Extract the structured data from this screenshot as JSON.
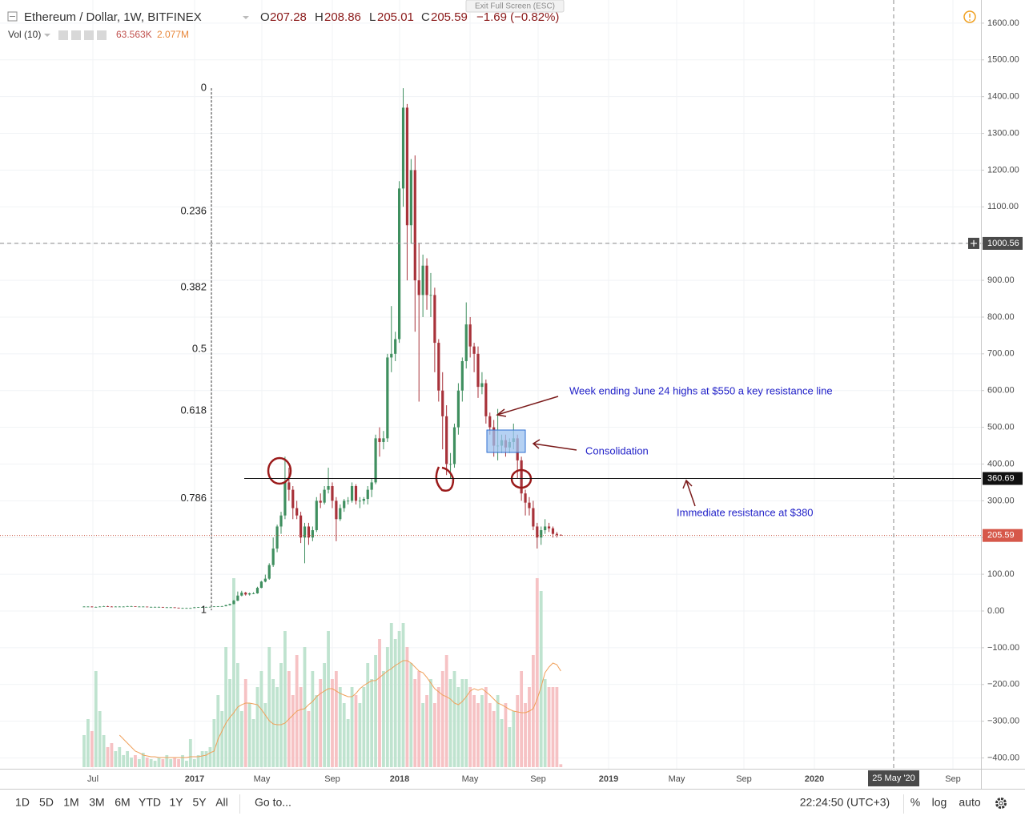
{
  "header": {
    "symbol": "Ethereum / Dollar, 1W, BITFINEX",
    "ohlc_letters": [
      "O",
      "H",
      "L",
      "C"
    ],
    "change": "−1.69 (−0.82%)",
    "exit_fullscreen": "Exit Full Screen (ESC)"
  },
  "chart_data": {
    "type": "candlestick",
    "up_color": "#3f8f5f",
    "down_color": "#a8323a",
    "ylim": [
      -425,
      1663
    ],
    "yticks": [
      {
        "value": -400,
        "label": "−400.00"
      },
      {
        "value": -300,
        "label": "−300.00"
      },
      {
        "value": -200,
        "label": "−200.00"
      },
      {
        "value": -100,
        "label": "−100.00"
      },
      {
        "value": 0,
        "label": "0.00"
      },
      {
        "value": 100,
        "label": "100.00"
      },
      {
        "value": 200,
        "label": "200.00"
      },
      {
        "value": 300,
        "label": "300.00"
      },
      {
        "value": 400,
        "label": "400.00"
      },
      {
        "value": 500,
        "label": "500.00"
      },
      {
        "value": 600,
        "label": "600.00"
      },
      {
        "value": 700,
        "label": "700.00"
      },
      {
        "value": 800,
        "label": "800.00"
      },
      {
        "value": 900,
        "label": "900.00"
      },
      {
        "value": 1000,
        "label": "1000.00"
      },
      {
        "value": 1100,
        "label": "1100.00"
      },
      {
        "value": 1200,
        "label": "1200.00"
      },
      {
        "value": 1300,
        "label": "1300.00"
      },
      {
        "value": 1400,
        "label": "1400.00"
      },
      {
        "value": 1500,
        "label": "1500.00"
      },
      {
        "value": 1600,
        "label": "1600.00"
      }
    ],
    "grid": true,
    "xtick_labels": [
      "Jul",
      "2017",
      "May",
      "Sep",
      "2018",
      "May",
      "Sep",
      "2019",
      "May",
      "Sep",
      "2020",
      "Sep"
    ],
    "ohlc": [
      [
        12,
        13,
        11,
        12
      ],
      [
        12,
        13,
        11,
        12
      ],
      [
        12,
        13,
        10,
        11
      ],
      [
        11,
        12,
        10,
        11
      ],
      [
        11,
        13,
        11,
        12
      ],
      [
        12,
        14,
        12,
        13
      ],
      [
        13,
        14,
        11,
        12
      ],
      [
        12,
        13,
        11,
        11
      ],
      [
        11,
        13,
        11,
        12
      ],
      [
        12,
        13,
        11,
        12
      ],
      [
        12,
        13,
        11,
        12
      ],
      [
        12,
        14,
        12,
        13
      ],
      [
        13,
        14,
        12,
        13
      ],
      [
        13,
        13,
        12,
        12
      ],
      [
        12,
        13,
        11,
        12
      ],
      [
        12,
        13,
        11,
        12
      ],
      [
        12,
        12,
        10,
        11
      ],
      [
        11,
        12,
        10,
        11
      ],
      [
        11,
        12,
        10,
        11
      ],
      [
        11,
        12,
        10,
        11
      ],
      [
        11,
        11,
        9,
        10
      ],
      [
        10,
        11,
        9,
        10
      ],
      [
        10,
        11,
        9,
        10
      ],
      [
        10,
        10,
        8,
        9
      ],
      [
        9,
        9,
        7,
        8
      ],
      [
        8,
        9,
        7,
        8
      ],
      [
        8,
        9,
        7,
        8
      ],
      [
        8,
        9,
        7,
        8
      ],
      [
        8,
        11,
        8,
        10
      ],
      [
        10,
        11,
        9,
        10.5
      ],
      [
        10.5,
        11,
        10,
        10.7
      ],
      [
        10.7,
        11.5,
        10.4,
        11
      ],
      [
        11,
        11.8,
        10.8,
        11.3
      ],
      [
        11.3,
        13,
        11,
        12.5
      ],
      [
        12.5,
        13.2,
        12,
        12.7
      ],
      [
        12.7,
        14,
        12.5,
        13
      ],
      [
        13,
        17,
        12.8,
        16
      ],
      [
        16,
        20,
        15,
        19
      ],
      [
        19,
        30,
        18,
        28
      ],
      [
        28,
        53,
        27,
        42
      ],
      [
        42,
        55,
        40,
        50
      ],
      [
        50,
        52,
        42,
        45
      ],
      [
        45,
        50,
        42,
        48
      ],
      [
        48,
        51,
        46,
        48
      ],
      [
        48,
        66,
        47,
        63
      ],
      [
        63,
        82,
        62,
        80
      ],
      [
        80,
        99,
        78,
        88
      ],
      [
        88,
        130,
        85,
        125
      ],
      [
        125,
        200,
        120,
        170
      ],
      [
        170,
        235,
        160,
        230
      ],
      [
        230,
        270,
        210,
        260
      ],
      [
        260,
        420,
        250,
        350
      ],
      [
        350,
        390,
        300,
        330
      ],
      [
        330,
        340,
        250,
        280
      ],
      [
        280,
        300,
        250,
        260
      ],
      [
        260,
        270,
        185,
        200
      ],
      [
        200,
        240,
        130,
        230
      ],
      [
        230,
        240,
        180,
        200
      ],
      [
        200,
        230,
        190,
        220
      ],
      [
        220,
        310,
        215,
        300
      ],
      [
        300,
        320,
        280,
        295
      ],
      [
        295,
        340,
        290,
        330
      ],
      [
        330,
        390,
        320,
        340
      ],
      [
        340,
        350,
        280,
        300
      ],
      [
        300,
        310,
        190,
        250
      ],
      [
        250,
        290,
        245,
        280
      ],
      [
        280,
        305,
        270,
        300
      ],
      [
        300,
        310,
        290,
        300
      ],
      [
        300,
        350,
        295,
        340
      ],
      [
        340,
        345,
        290,
        300
      ],
      [
        300,
        310,
        280,
        300
      ],
      [
        300,
        310,
        290,
        305
      ],
      [
        305,
        340,
        290,
        330
      ],
      [
        330,
        360,
        310,
        350
      ],
      [
        350,
        480,
        345,
        470
      ],
      [
        470,
        500,
        420,
        460
      ],
      [
        460,
        490,
        440,
        470
      ],
      [
        470,
        700,
        460,
        690
      ],
      [
        690,
        830,
        650,
        700
      ],
      [
        700,
        760,
        680,
        740
      ],
      [
        740,
        1170,
        730,
        1150
      ],
      [
        1150,
        1423,
        1100,
        1370
      ],
      [
        1370,
        1380,
        900,
        1050
      ],
      [
        1050,
        1230,
        1000,
        1200
      ],
      [
        1200,
        1240,
        760,
        900
      ],
      [
        900,
        1000,
        570,
        860
      ],
      [
        860,
        970,
        800,
        940
      ],
      [
        940,
        960,
        820,
        860
      ],
      [
        860,
        920,
        800,
        860
      ],
      [
        860,
        880,
        650,
        730
      ],
      [
        730,
        740,
        570,
        600
      ],
      [
        600,
        650,
        440,
        530
      ],
      [
        530,
        560,
        370,
        400
      ],
      [
        400,
        430,
        360,
        400
      ],
      [
        400,
        510,
        390,
        500
      ],
      [
        500,
        620,
        480,
        600
      ],
      [
        600,
        690,
        570,
        680
      ],
      [
        680,
        840,
        660,
        780
      ],
      [
        780,
        800,
        690,
        720
      ],
      [
        720,
        730,
        650,
        700
      ],
      [
        700,
        720,
        580,
        610
      ],
      [
        610,
        650,
        590,
        620
      ],
      [
        620,
        630,
        510,
        530
      ],
      [
        530,
        540,
        480,
        500
      ],
      [
        500,
        520,
        420,
        450
      ],
      [
        450,
        550,
        410,
        450
      ],
      [
        450,
        480,
        430,
        465
      ],
      [
        465,
        480,
        420,
        445
      ],
      [
        445,
        470,
        430,
        460
      ],
      [
        460,
        510,
        440,
        470
      ],
      [
        470,
        480,
        360,
        410
      ],
      [
        410,
        420,
        300,
        320
      ],
      [
        320,
        330,
        260,
        295
      ],
      [
        295,
        310,
        260,
        280
      ],
      [
        280,
        300,
        220,
        230
      ],
      [
        230,
        240,
        170,
        200
      ],
      [
        200,
        230,
        180,
        220
      ],
      [
        220,
        250,
        210,
        230
      ],
      [
        230,
        240,
        215,
        225
      ],
      [
        225,
        230,
        200,
        210
      ],
      [
        210,
        215,
        200,
        207.28
      ],
      [
        207.28,
        208.86,
        205.01,
        205.59
      ]
    ],
    "volume": {
      "name": "Vol (10)",
      "up_color": "#bfe3cf",
      "down_color": "#f6c2c4",
      "ma_color": "#f0a05a",
      "last_label": "63.563K",
      "ma_last_label": "2.077M",
      "values": [
        692000,
        1038000,
        779000,
        2076000,
        1211000,
        692000,
        433000,
        519000,
        346000,
        433000,
        260000,
        346000,
        208000,
        260000,
        173000,
        311000,
        208000,
        173000,
        138000,
        208000,
        173000,
        260000,
        173000,
        208000,
        173000,
        260000,
        138000,
        606000,
        173000,
        260000,
        346000,
        346000,
        433000,
        1038000,
        1557000,
        1211000,
        2595000,
        1903000,
        4083000,
        2249000,
        1211000,
        1903000,
        1384000,
        1038000,
        1730000,
        2076000,
        1384000,
        2595000,
        1903000,
        1730000,
        2249000,
        2941000,
        2076000,
        1557000,
        2422000,
        1730000,
        2595000,
        1211000,
        2076000,
        1557000,
        1903000,
        2249000,
        2941000,
        1903000,
        2076000,
        1730000,
        1384000,
        1038000,
        1730000,
        1557000,
        1384000,
        1730000,
        2249000,
        1903000,
        2422000,
        2768000,
        2076000,
        2595000,
        3114000,
        2768000,
        2941000,
        3114000,
        2595000,
        2249000,
        1903000,
        2076000,
        1384000,
        1557000,
        1903000,
        1384000,
        1730000,
        2076000,
        2422000,
        1903000,
        2076000,
        1730000,
        1903000,
        1903000,
        1730000,
        1557000,
        1384000,
        1557000,
        1730000,
        1384000,
        1211000,
        1557000,
        1038000,
        1384000,
        865000,
        1211000,
        1557000,
        2076000,
        1384000,
        1730000,
        2422000,
        4083000,
        3806000,
        1903000,
        1730000,
        1730000,
        1730000,
        63563
      ],
      "ma": [
        null,
        null,
        null,
        null,
        null,
        null,
        null,
        null,
        null,
        692000,
        606000,
        519000,
        433000,
        346000,
        311000,
        260000,
        242000,
        225000,
        225000,
        208000,
        208000,
        208000,
        208000,
        208000,
        208000,
        208000,
        208000,
        225000,
        225000,
        225000,
        242000,
        260000,
        311000,
        346000,
        606000,
        779000,
        952000,
        1073000,
        1176000,
        1298000,
        1349000,
        1384000,
        1384000,
        1367000,
        1349000,
        1246000,
        1125000,
        1003000,
        934000,
        917000,
        917000,
        952000,
        1038000,
        1125000,
        1211000,
        1246000,
        1263000,
        1349000,
        1419000,
        1522000,
        1592000,
        1644000,
        1695000,
        1695000,
        1644000,
        1592000,
        1557000,
        1522000,
        1522000,
        1592000,
        1695000,
        1765000,
        1817000,
        1868000,
        1868000,
        1938000,
        2007000,
        2076000,
        2128000,
        2197000,
        2249000,
        2301000,
        2301000,
        2249000,
        2163000,
        2076000,
        2041000,
        1938000,
        1817000,
        1695000,
        1626000,
        1557000,
        1522000,
        1471000,
        1384000,
        1349000,
        1419000,
        1522000,
        1644000,
        1695000,
        1661000,
        1695000,
        1626000,
        1557000,
        1471000,
        1384000,
        1349000,
        1298000,
        1246000,
        1211000,
        1194000,
        1176000,
        1176000,
        1211000,
        1263000,
        1471000,
        1730000,
        2041000,
        2163000,
        2249000,
        2214000,
        2077000
      ]
    },
    "fib": {
      "anchors": [
        1423,
        2
      ],
      "levels": [
        0,
        0.236,
        0.382,
        0.5,
        0.618,
        0.786,
        1
      ]
    },
    "resistance_line": 360.69,
    "crosshair": {
      "price": 1000.56,
      "date": "25 May '20"
    },
    "annotations": [
      "Week ending June 24 highs at $550 a key resistance line",
      "Consolidation",
      "Immediate resistance at $380"
    ]
  },
  "toolbar": {
    "ranges": [
      "1D",
      "5D",
      "1M",
      "3M",
      "6M",
      "YTD",
      "1Y",
      "5Y",
      "All"
    ],
    "goto": "Go to...",
    "clock": "22:24:50 (UTC+3)",
    "options": [
      "%",
      "log",
      "auto"
    ]
  }
}
